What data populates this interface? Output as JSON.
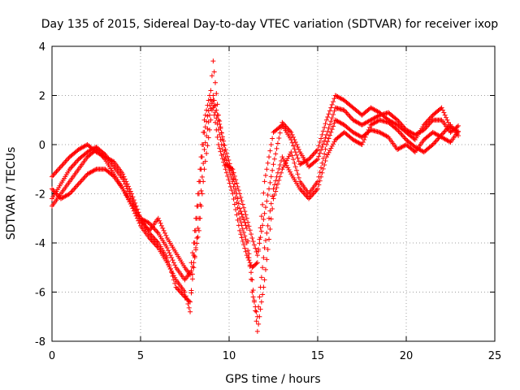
{
  "chart_data": {
    "type": "scatter",
    "title": "Day 135 of 2015, Sidereal Day-to-day VTEC variation (SDTVAR) for receiver ixop",
    "xlabel": "GPS time / hours",
    "ylabel": "SDTVAR / TECUs",
    "xlim": [
      0,
      25
    ],
    "ylim": [
      -8,
      4
    ],
    "xticks": [
      "0",
      "5",
      "10",
      "15",
      "20",
      "25"
    ],
    "yticks": [
      "-8",
      "-6",
      "-4",
      "-2",
      "0",
      "2",
      "4"
    ],
    "grid": true,
    "legend": "none",
    "marker": "+",
    "color": "#ff0000",
    "series": [
      {
        "x": [
          0,
          0.5,
          1,
          1.5,
          2,
          2.5,
          3,
          3.5,
          4,
          4.5,
          5,
          5.5,
          6,
          6.5,
          7,
          7.5,
          7.8,
          8,
          8.3,
          8.6,
          8.9,
          9.1,
          9.4,
          9.8,
          10.2,
          10.6,
          11,
          11.3,
          11.6,
          12,
          12.5,
          13,
          13.5,
          14,
          14.5,
          15,
          15.5,
          16,
          16.5,
          17,
          17.5,
          18,
          18.5,
          19,
          19.5,
          20,
          20.5,
          21,
          21.5,
          22,
          22.5,
          23
        ],
        "y": [
          -1.3,
          -0.9,
          -0.5,
          -0.2,
          0,
          -0.3,
          -0.5,
          -0.7,
          -1.2,
          -2,
          -3,
          -3.2,
          -3.6,
          -4.2,
          -5,
          -5.5,
          -5.2,
          -4,
          -1.5,
          1,
          2,
          1.5,
          0,
          -1,
          -2,
          -3.5,
          -4.5,
          -5,
          -4.8,
          -1.5,
          0.5,
          0.8,
          0.2,
          -0.8,
          -0.6,
          -0.2,
          1,
          2,
          1.8,
          1.5,
          1.2,
          1.5,
          1.3,
          1.0,
          0.8,
          0.5,
          0.2,
          0.8,
          1.2,
          1.5,
          0.7,
          0.5
        ]
      },
      {
        "x": [
          0,
          0.5,
          1,
          1.5,
          2,
          2.5,
          3,
          3.5,
          4,
          4.5,
          5,
          5.5,
          6,
          6.5,
          7,
          7.5,
          7.8,
          8,
          8.3,
          8.6,
          8.9,
          9.1,
          9.4,
          9.8,
          10.2,
          10.6,
          11,
          11.3,
          11.6,
          12,
          12.5,
          13,
          13.5,
          14,
          14.5,
          15,
          15.5,
          16,
          16.5,
          17,
          17.5,
          18,
          18.5,
          19,
          19.5,
          20,
          20.5,
          21,
          21.5,
          22,
          22.5,
          23
        ],
        "y": [
          -2.5,
          -2.0,
          -1.5,
          -1.0,
          -0.5,
          -0.2,
          -0.6,
          -1.2,
          -1.8,
          -2.5,
          -3.3,
          -3.8,
          -4.2,
          -4.8,
          -5.5,
          -6.0,
          -6.8,
          -4.5,
          -2.0,
          0.5,
          1.6,
          3.4,
          1.2,
          -0.5,
          -1.5,
          -3.0,
          -4.0,
          -5.5,
          -7.6,
          -5.5,
          -2.2,
          -1.0,
          -0.3,
          -1.5,
          -2.0,
          -1.5,
          0.0,
          1.0,
          0.8,
          0.5,
          0.3,
          0.6,
          0.5,
          0.3,
          -0.2,
          0.0,
          -0.3,
          0.2,
          0.5,
          0.3,
          0.1,
          0.6
        ]
      },
      {
        "x": [
          0,
          0.5,
          1,
          1.5,
          2,
          2.5,
          3,
          3.5,
          4,
          4.5,
          5,
          5.5,
          6,
          6.5,
          7,
          7.5,
          7.8,
          8,
          8.3,
          8.6,
          8.9,
          9.1,
          9.4,
          9.8,
          10.2,
          10.6,
          11,
          11.3,
          11.6,
          12,
          12.5,
          13,
          13.5,
          14,
          14.5,
          15,
          15.5,
          16,
          16.5,
          17,
          17.5,
          18,
          18.5,
          19,
          19.5,
          20,
          20.5,
          21,
          21.5,
          22,
          22.5,
          23
        ],
        "y": [
          -1.8,
          -2.2,
          -2.0,
          -1.6,
          -1.2,
          -1.0,
          -1.0,
          -1.3,
          -1.8,
          -2.4,
          -3.0,
          -3.6,
          -4.0,
          -4.6,
          -5.8,
          -6.2,
          -6.4,
          -5.0,
          -3.0,
          -0.2,
          1.2,
          2.0,
          1.0,
          -0.2,
          -1.2,
          -2.6,
          -3.4,
          -6.0,
          -7.0,
          -4.2,
          -1.8,
          -0.5,
          -1.2,
          -1.8,
          -2.2,
          -1.8,
          -0.5,
          0.2,
          0.5,
          0.2,
          0.0,
          0.8,
          1.0,
          0.9,
          0.6,
          0.2,
          -0.1,
          -0.3,
          0.0,
          0.4,
          0.8,
          0.3
        ]
      },
      {
        "x": [
          0,
          0.5,
          1,
          1.5,
          2,
          2.5,
          3,
          3.5,
          4,
          4.5,
          5,
          5.5,
          6,
          6.5,
          7,
          7.5,
          7.8,
          8,
          8.3,
          8.6,
          8.9,
          9.1,
          9.4,
          9.8,
          10.2,
          10.6,
          11,
          11.3,
          11.6,
          12,
          12.5,
          13,
          13.5,
          14,
          14.5,
          15,
          15.5,
          16,
          16.5,
          17,
          17.5,
          18,
          18.5,
          19,
          19.5,
          20,
          20.5,
          21,
          21.5,
          22,
          22.5,
          23
        ],
        "y": [
          -2.2,
          -1.6,
          -1.0,
          -0.6,
          -0.3,
          -0.1,
          -0.4,
          -0.9,
          -1.4,
          -2.2,
          -3.1,
          -3.5,
          -3.0,
          -3.8,
          -4.4,
          -5.0,
          -5.3,
          -4.8,
          -3.5,
          -1.0,
          0.6,
          1.8,
          0.6,
          -0.8,
          -1.0,
          -2.0,
          -3.0,
          -3.8,
          -4.5,
          -2.8,
          -0.8,
          0.9,
          0.5,
          -0.3,
          -0.9,
          -0.6,
          0.4,
          1.5,
          1.4,
          1.0,
          0.8,
          1.0,
          1.2,
          1.3,
          1.0,
          0.6,
          0.4,
          0.6,
          1.0,
          1.0,
          0.5,
          0.8
        ]
      }
    ]
  }
}
